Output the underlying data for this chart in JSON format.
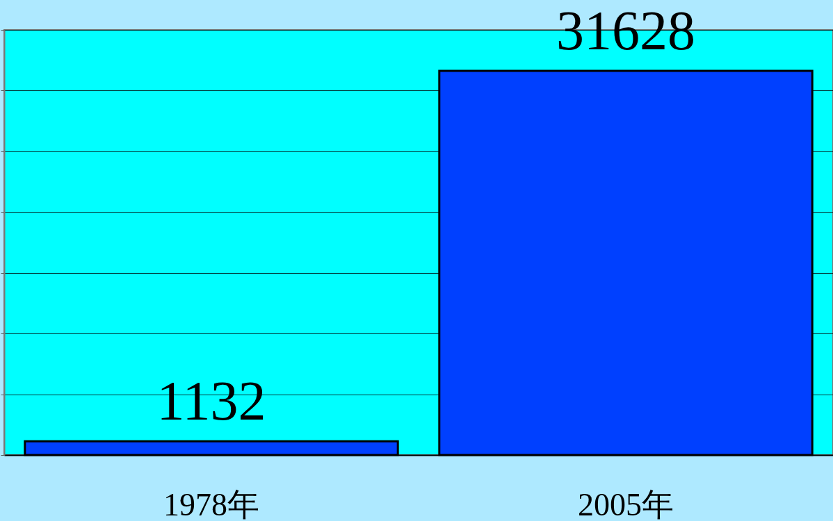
{
  "chart_data": {
    "type": "bar",
    "categories": [
      "1978年",
      "2005年"
    ],
    "values": [
      1132,
      31628
    ],
    "color": "#0040ff",
    "ylim": [
      0,
      35000
    ],
    "yticks": [
      {
        "value": 0,
        "label": null
      },
      {
        "value": 5000,
        "label": null
      },
      {
        "value": 10000,
        "label": null
      },
      {
        "value": 15000,
        "label": null
      },
      {
        "value": 20000,
        "label": null
      },
      {
        "value": 25000,
        "label": null
      },
      {
        "value": 30000,
        "label": null
      },
      {
        "value": 35000,
        "label": null
      }
    ],
    "tick_labels": "x",
    "grid": "y",
    "data_labels": true
  }
}
